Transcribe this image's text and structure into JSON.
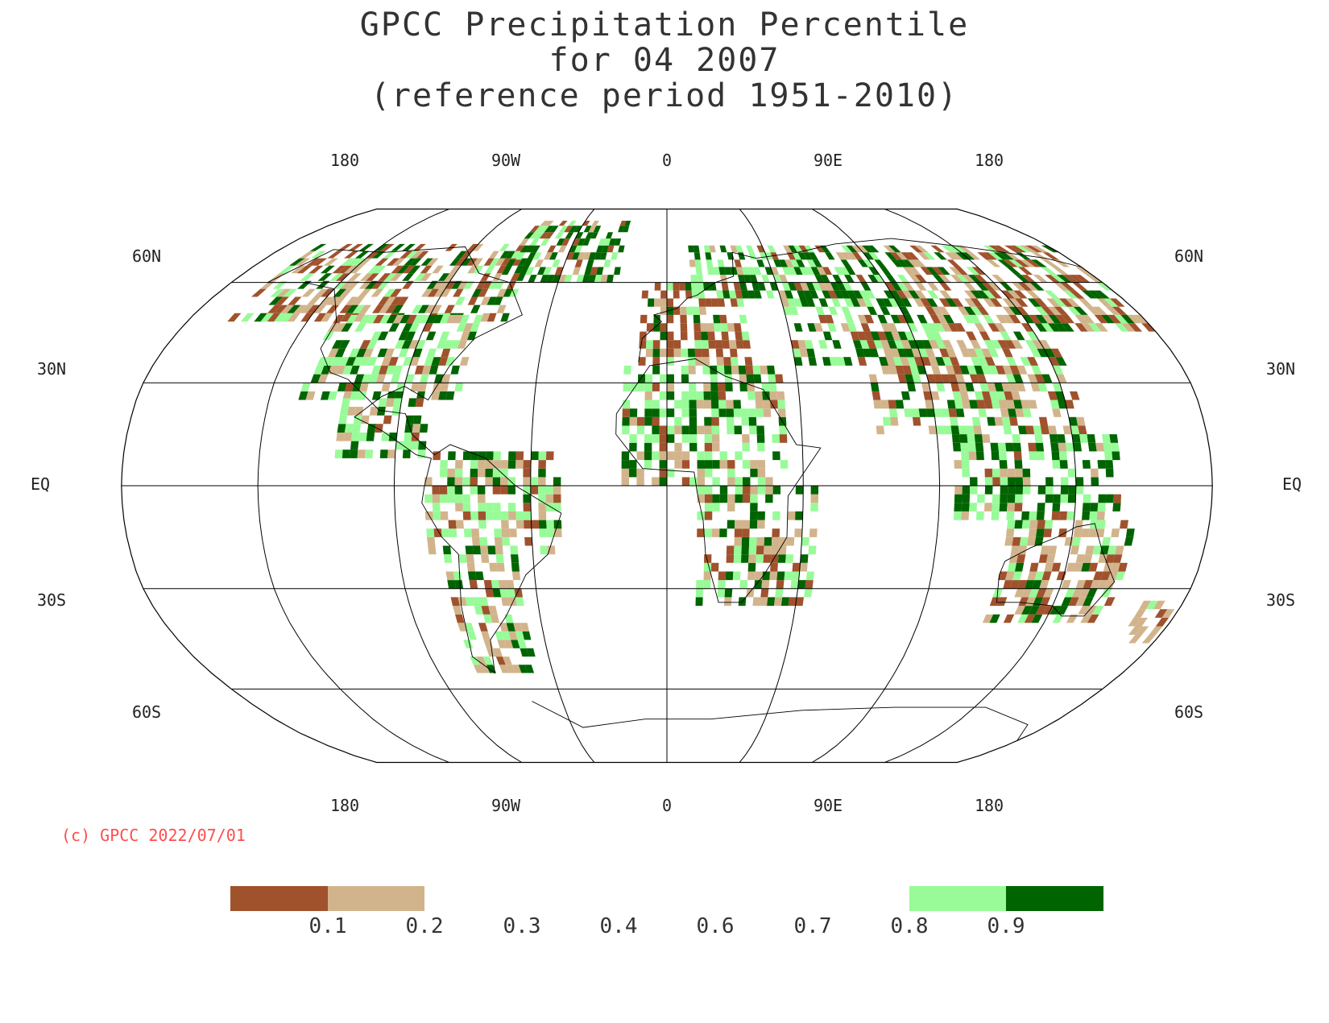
{
  "title": {
    "line1": "GPCC Precipitation Percentile",
    "line2": "for 04 2007",
    "line3": "(reference period 1951-2010)"
  },
  "map": {
    "projection": "Robinson",
    "top_lon_labels": [
      "180",
      "90W",
      "0",
      "90E",
      "180"
    ],
    "bottom_lon_labels": [
      "180",
      "90W",
      "0",
      "90E",
      "180"
    ],
    "lat_labels": [
      "60N",
      "30N",
      "EQ",
      "30S",
      "60S"
    ],
    "colors": {
      "outline": "#000000",
      "gridline": "#000000"
    }
  },
  "legend": {
    "ticks": [
      "0.1",
      "0.2",
      "0.3",
      "0.4",
      "0.6",
      "0.7",
      "0.8",
      "0.9"
    ],
    "bins": [
      {
        "range": "<0.1",
        "color": "#a0522d"
      },
      {
        "range": "0.1-0.2",
        "color": "#d2b48c"
      },
      {
        "range": "0.2-0.3",
        "color": "#ffffff"
      },
      {
        "range": "0.3-0.4",
        "color": "#ffffff"
      },
      {
        "range": "0.4-0.6",
        "color": "#ffffff"
      },
      {
        "range": "0.6-0.7",
        "color": "#ffffff"
      },
      {
        "range": "0.7-0.8",
        "color": "#ffffff"
      },
      {
        "range": "0.8-0.9",
        "color": "#98fb98"
      },
      {
        "range": ">0.9",
        "color": "#006400"
      }
    ]
  },
  "copyright": "(c) GPCC 2022/07/01"
}
